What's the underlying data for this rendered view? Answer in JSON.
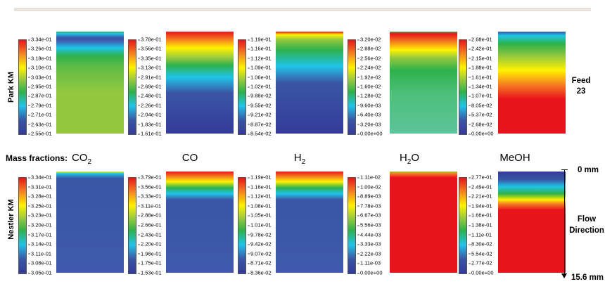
{
  "rows": [
    {
      "label": "Park KM",
      "panels": [
        {
          "ticks": [
            "3.34e-01",
            "3.26e-01",
            "3.18e-01",
            "3.10e-01",
            "3.03e-01",
            "2.95e-01",
            "2.87e-01",
            "2.79e-01",
            "2.71e-01",
            "2.63e-01",
            "2.55e-01"
          ]
        },
        {
          "ticks": [
            "3.78e-01",
            "3.56e-01",
            "3.35e-01",
            "3.13e-01",
            "2.91e-01",
            "2.69e-01",
            "2.48e-01",
            "2.26e-01",
            "2.04e-01",
            "1.83e-01",
            "1.61e-01"
          ]
        },
        {
          "ticks": [
            "1.19e-01",
            "1.16e-01",
            "1.12e-01",
            "1.09e-01",
            "1.06e-01",
            "1.02e-01",
            "9.88e-02",
            "9.55e-02",
            "9.21e-02",
            "8.87e-02",
            "8.54e-02"
          ]
        },
        {
          "ticks": [
            "3.20e-02",
            "2.88e-02",
            "2.56e-02",
            "2.24e-02",
            "1.92e-02",
            "1.60e-02",
            "1.28e-02",
            "9.60e-03",
            "6.40e-03",
            "3.20e-03",
            "0.00e+00"
          ]
        },
        {
          "ticks": [
            "2.68e-01",
            "2.42e-01",
            "2.15e-01",
            "1.88e-01",
            "1.61e-01",
            "1.34e-01",
            "1.07e-01",
            "8.05e-02",
            "5.37e-02",
            "2.68e-02",
            "0.00e+00"
          ]
        }
      ]
    },
    {
      "label": "Nestler KM",
      "panels": [
        {
          "ticks": [
            "3.34e-01",
            "3.31e-01",
            "3.28e-01",
            "3.25e-01",
            "3.23e-01",
            "3.20e-01",
            "3.17e-01",
            "3.14e-01",
            "3.11e-01",
            "3.08e-01",
            "3.05e-01"
          ]
        },
        {
          "ticks": [
            "3.79e-01",
            "3.56e-01",
            "3.33e-01",
            "3.11e-01",
            "2.88e-01",
            "2.66e-01",
            "2.43e-01",
            "2.20e-01",
            "1.98e-01",
            "1.75e-01",
            "1.53e-01"
          ]
        },
        {
          "ticks": [
            "1.19e-01",
            "1.16e-01",
            "1.12e-01",
            "1.08e-01",
            "1.05e-01",
            "1.01e-01",
            "9.78e-02",
            "9.42e-02",
            "9.07e-02",
            "8.71e-02",
            "8.36e-02"
          ]
        },
        {
          "ticks": [
            "1.11e-02",
            "1.00e-02",
            "8.89e-03",
            "7.78e-03",
            "6.67e-03",
            "5.56e-03",
            "4.44e-03",
            "3.33e-03",
            "2.22e-03",
            "1.11e-03",
            "0.00e+00"
          ]
        },
        {
          "ticks": [
            "2.77e-01",
            "2.49e-01",
            "2.21e-01",
            "1.94e-01",
            "1.66e-01",
            "1.38e-01",
            "1.11e-01",
            "8.30e-02",
            "5.54e-02",
            "2.77e-02",
            "0.00e+00"
          ]
        }
      ]
    }
  ],
  "mass_fractions_label": "Mass fractions:",
  "species": [
    {
      "base": "CO",
      "sub": "2"
    },
    {
      "base": "CO",
      "sub": ""
    },
    {
      "base": "H",
      "sub": "2"
    },
    {
      "base": "H",
      "sub": "2",
      "tail": "O"
    },
    {
      "base": "MeOH",
      "sub": ""
    }
  ],
  "side": {
    "feed": "Feed",
    "feed_num": "23",
    "top_mm": "0 mm",
    "flow1": "Flow",
    "flow2": "Direction",
    "bottom_mm": "15.6 mm"
  }
}
